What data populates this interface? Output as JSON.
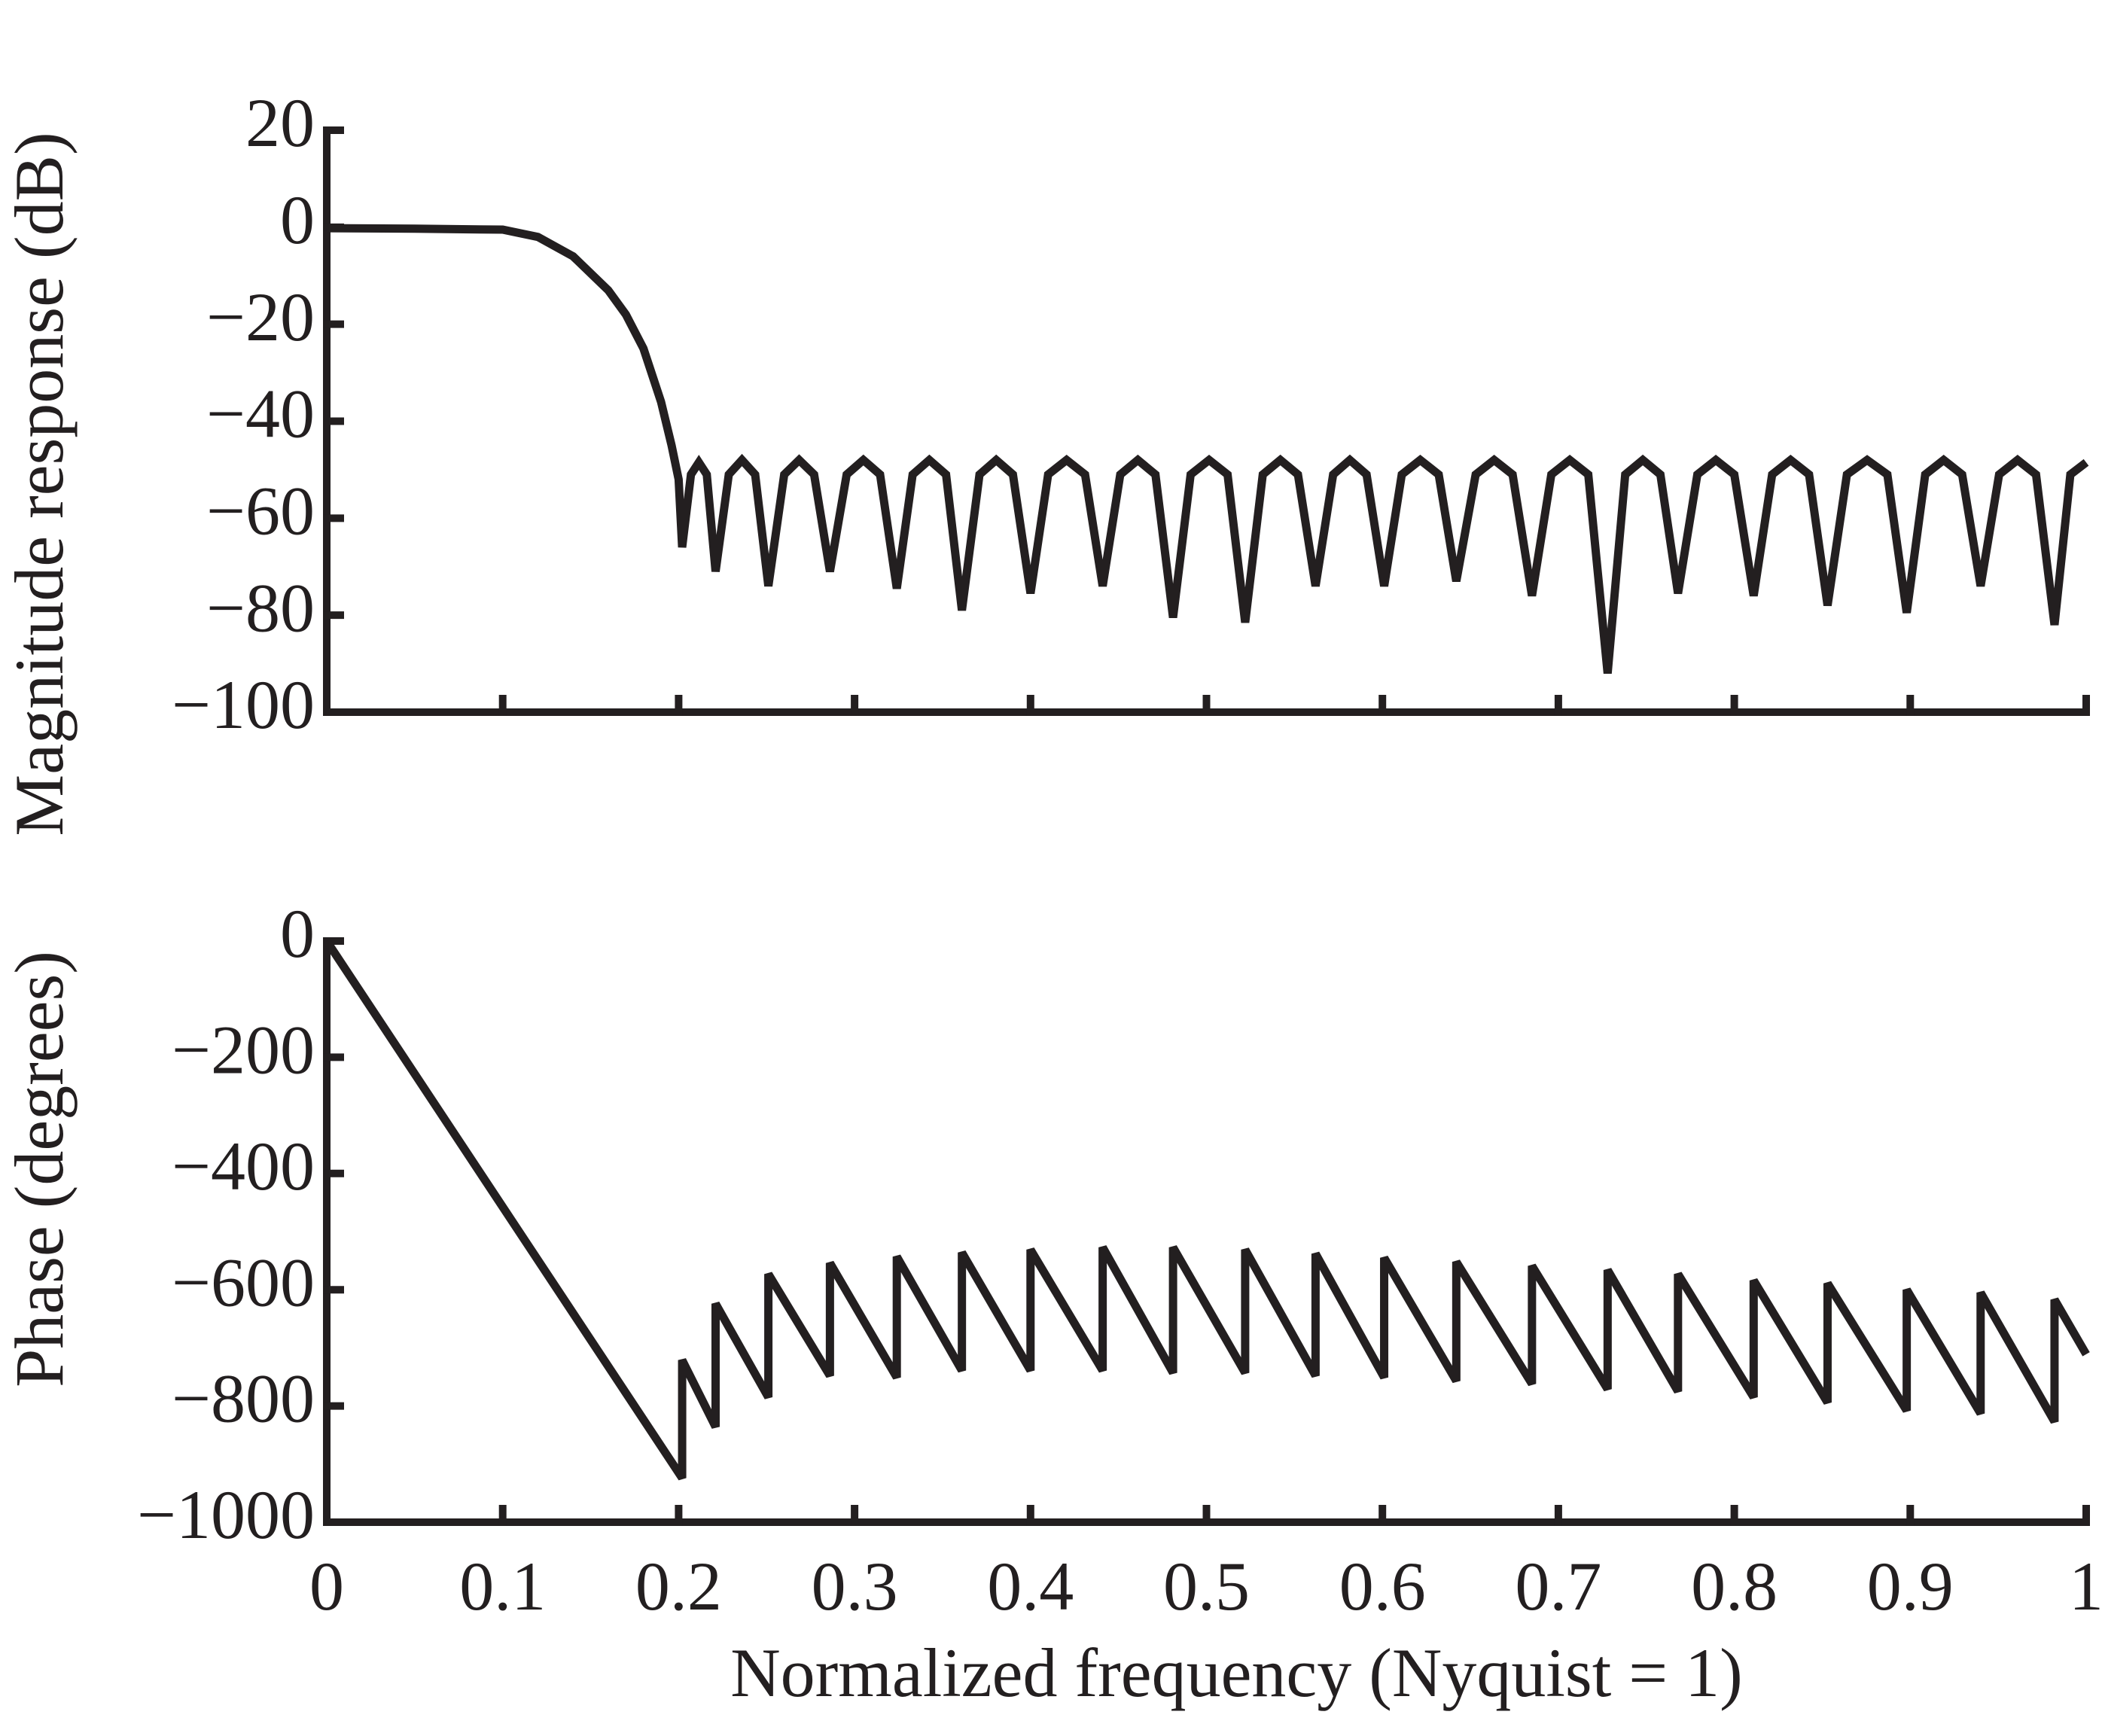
{
  "chart_data": [
    {
      "type": "line",
      "ylabel": "Magnitude response (dB)",
      "color": "#231f20",
      "xlim": [
        0,
        1
      ],
      "xticks": [
        0,
        0.1,
        0.2,
        0.3,
        0.4,
        0.5,
        0.6,
        0.7,
        0.8,
        0.9,
        1
      ],
      "show_xtick_labels": false,
      "ylim": [
        -100,
        20
      ],
      "yticks": [
        {
          "value": -100,
          "label": "−100"
        },
        {
          "value": -80,
          "label": "−80"
        },
        {
          "value": -60,
          "label": "−60"
        },
        {
          "value": -40,
          "label": "−40"
        },
        {
          "value": -20,
          "label": "−20"
        },
        0,
        20
      ],
      "x": [
        0,
        0.05,
        0.1,
        0.12,
        0.14,
        0.16,
        0.17,
        0.18,
        0.19,
        0.196,
        0.2,
        0.202,
        0.207,
        0.2115,
        0.216,
        0.221,
        0.2285,
        0.236,
        0.2435,
        0.251,
        0.26,
        0.2685,
        0.277,
        0.286,
        0.2955,
        0.305,
        0.3145,
        0.324,
        0.333,
        0.3425,
        0.352,
        0.361,
        0.371,
        0.3805,
        0.39,
        0.4,
        0.41,
        0.4205,
        0.431,
        0.441,
        0.451,
        0.461,
        0.471,
        0.481,
        0.491,
        0.5015,
        0.512,
        0.522,
        0.532,
        0.542,
        0.552,
        0.562,
        0.572,
        0.5815,
        0.591,
        0.601,
        0.611,
        0.6215,
        0.632,
        0.642,
        0.653,
        0.6635,
        0.674,
        0.685,
        0.696,
        0.7065,
        0.717,
        0.728,
        0.738,
        0.748,
        0.758,
        0.768,
        0.779,
        0.7895,
        0.8,
        0.811,
        0.8215,
        0.832,
        0.8425,
        0.853,
        0.864,
        0.8755,
        0.887,
        0.898,
        0.9085,
        0.919,
        0.9295,
        0.94,
        0.9505,
        0.961,
        0.9715,
        0.982,
        0.991,
        1
      ],
      "values": [
        -0.2,
        -0.3,
        -0.5,
        -2,
        -6,
        -13,
        -18,
        -25,
        -36,
        -45,
        -52,
        -66,
        -51,
        -48.5,
        -51,
        -71,
        -51,
        -48,
        -51,
        -74,
        -51,
        -48,
        -51,
        -71,
        -51,
        -48,
        -51,
        -74.5,
        -51,
        -48,
        -51,
        -79,
        -51,
        -48,
        -51,
        -75.5,
        -51,
        -48,
        -51,
        -74,
        -51,
        -48,
        -51,
        -80.5,
        -51,
        -48,
        -51,
        -81.5,
        -51,
        -48,
        -51,
        -74,
        -51,
        -48,
        -51,
        -74,
        -51,
        -48,
        -51,
        -73,
        -51,
        -48,
        -51,
        -76,
        -51,
        -48,
        -51,
        -92,
        -51,
        -48,
        -51,
        -75.5,
        -51,
        -48,
        -51,
        -76,
        -51,
        -48,
        -51,
        -78,
        -51,
        -48,
        -51,
        -79.5,
        -51,
        -48,
        -51,
        -74,
        -51,
        -48,
        -51,
        -82,
        -51,
        -48.5
      ]
    },
    {
      "type": "line",
      "ylabel": "Phase (degrees)",
      "xlabel": "Normalized frequency (Nyquist = 1)",
      "color": "#231f20",
      "xlim": [
        0,
        1
      ],
      "xticks": [
        0,
        0.1,
        0.2,
        0.3,
        0.4,
        0.5,
        0.6,
        0.7,
        0.8,
        0.9,
        1
      ],
      "show_xtick_labels": true,
      "ylim": [
        -1000,
        0
      ],
      "yticks": [
        {
          "value": -1000,
          "label": "−1000"
        },
        {
          "value": -800,
          "label": "−800"
        },
        {
          "value": -600,
          "label": "−600"
        },
        {
          "value": -400,
          "label": "−400"
        },
        {
          "value": -200,
          "label": "−200"
        },
        0
      ],
      "x": [
        0,
        0.202,
        0.202,
        0.221,
        0.221,
        0.251,
        0.251,
        0.286,
        0.286,
        0.324,
        0.324,
        0.361,
        0.361,
        0.4,
        0.4,
        0.441,
        0.441,
        0.481,
        0.481,
        0.522,
        0.522,
        0.562,
        0.562,
        0.601,
        0.601,
        0.642,
        0.642,
        0.685,
        0.685,
        0.728,
        0.728,
        0.768,
        0.768,
        0.811,
        0.811,
        0.853,
        0.853,
        0.898,
        0.898,
        0.94,
        0.94,
        0.982,
        0.982,
        1
      ],
      "values": [
        0,
        -924,
        -721,
        -836,
        -624,
        -785,
        -573,
        -748,
        -554,
        -751,
        -543,
        -739,
        -536,
        -739,
        -531,
        -739,
        -527,
        -743,
        -527,
        -743,
        -531,
        -748,
        -538,
        -751,
        -545,
        -757,
        -552,
        -762,
        -559,
        -771,
        -566,
        -775,
        -573,
        -785,
        -584,
        -794,
        -589,
        -808,
        -600,
        -813,
        -605,
        -827,
        -617,
        -711
      ]
    }
  ]
}
